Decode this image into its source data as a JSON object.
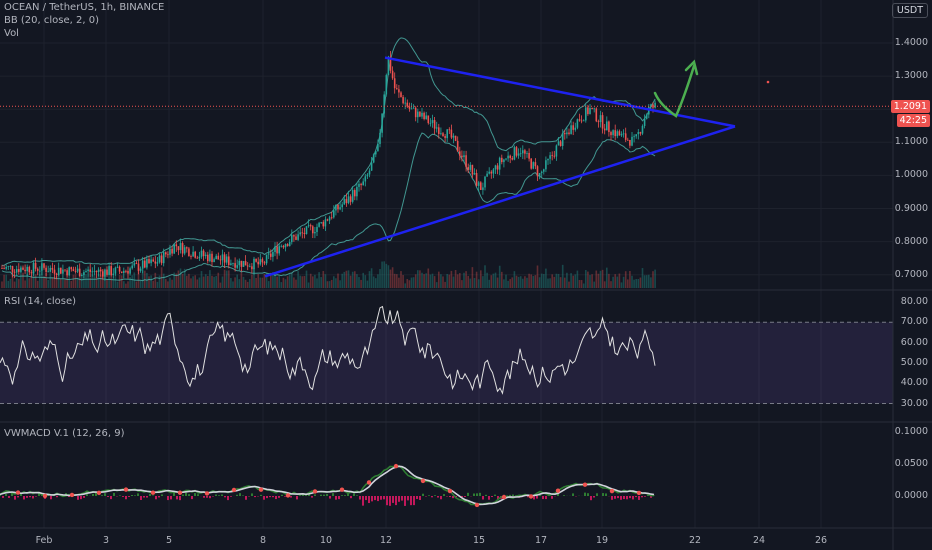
{
  "header": {
    "symbol_line": "OCEAN / TetherUS, 1h, BINANCE",
    "bb_line": "BB (20, close, 2, 0)",
    "vol_line": "Vol",
    "currency": "USDT"
  },
  "price_axis": {
    "ticks": [
      "1.4000",
      "1.3000",
      "1.2000",
      "1.1000",
      "1.0000",
      "0.9000",
      "0.8000",
      "0.7000"
    ],
    "last_price": "1.2091",
    "countdown": "42:25"
  },
  "rsi": {
    "label": "RSI (14, close)",
    "ticks": [
      "80.00",
      "70.00",
      "60.00",
      "50.00",
      "40.00",
      "30.00"
    ]
  },
  "macd": {
    "label": "VWMACD V.1 (12, 26, 9)",
    "ticks": [
      "0.1000",
      "0.0500",
      "0.0000"
    ]
  },
  "dates": [
    "Feb",
    "3",
    "5",
    "8",
    "10",
    "12",
    "15",
    "17",
    "19",
    "22",
    "24",
    "26"
  ],
  "colors": {
    "bg": "#131722",
    "up": "#26a69a",
    "down": "#ef5350",
    "bb": "#4db6ac",
    "trendline": "#1e22f0",
    "arrow": "#4caf50",
    "rsi_line": "#e0e0e0",
    "rsi_band": "#7e57c2",
    "macd_up": "#2e7d32",
    "macd_down": "#c2185b"
  },
  "chart_data": {
    "type": "candlestick",
    "title": "OCEAN / TetherUS, 1h, BINANCE",
    "ylim": [
      0.68,
      1.44
    ],
    "x_dates": [
      "Feb",
      "3",
      "5",
      "8",
      "10",
      "12",
      "15",
      "17",
      "19",
      "22",
      "24",
      "26"
    ],
    "price_path": [
      [
        0,
        0.72
      ],
      [
        40,
        0.72
      ],
      [
        80,
        0.71
      ],
      [
        120,
        0.71
      ],
      [
        158,
        0.74
      ],
      [
        175,
        0.79
      ],
      [
        200,
        0.76
      ],
      [
        230,
        0.74
      ],
      [
        262,
        0.73
      ],
      [
        280,
        0.79
      ],
      [
        300,
        0.82
      ],
      [
        320,
        0.85
      ],
      [
        345,
        0.92
      ],
      [
        365,
        0.98
      ],
      [
        378,
        1.08
      ],
      [
        388,
        1.36
      ],
      [
        395,
        1.26
      ],
      [
        410,
        1.2
      ],
      [
        430,
        1.16
      ],
      [
        450,
        1.12
      ],
      [
        470,
        1.02
      ],
      [
        480,
        0.96
      ],
      [
        500,
        1.04
      ],
      [
        520,
        1.08
      ],
      [
        540,
        1.0
      ],
      [
        560,
        1.1
      ],
      [
        575,
        1.16
      ],
      [
        590,
        1.2
      ],
      [
        605,
        1.15
      ],
      [
        620,
        1.12
      ],
      [
        635,
        1.1
      ],
      [
        648,
        1.2
      ],
      [
        656,
        1.21
      ]
    ],
    "upper_trendline": [
      [
        385,
        1.356
      ],
      [
        735,
        1.148
      ]
    ],
    "lower_trendline": [
      [
        265,
        0.695
      ],
      [
        735,
        1.148
      ]
    ],
    "last_price": 1.2091,
    "rsi": {
      "ylim": [
        25,
        82
      ],
      "overbought": 70,
      "oversold": 30
    },
    "vwmacd": {
      "ylim": [
        -0.045,
        0.105
      ]
    }
  }
}
